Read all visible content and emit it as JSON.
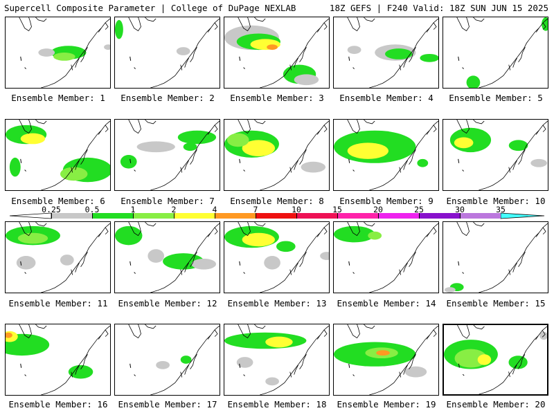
{
  "header": {
    "left": "Supercell Composite Parameter | College of DuPage NEXLAB",
    "right": "18Z GEFS | F240 Valid: 18Z SUN JUN 15 2025"
  },
  "colorbar": {
    "ticks": [
      "0.25",
      "0.5",
      "1",
      "2",
      "4",
      "7",
      "10",
      "15",
      "20",
      "25",
      "30",
      "35"
    ],
    "colors": [
      "#c8c8c8",
      "#22dd22",
      "#88ee44",
      "#ffff33",
      "#ff9922",
      "#ee1111",
      "#ee1155",
      "#ff22aa",
      "#ee22ee",
      "#8811cc",
      "#bb77dd",
      "#44ffff"
    ]
  },
  "panels": [
    {
      "label": "Ensemble Member: 1",
      "selected": false
    },
    {
      "label": "Ensemble Member: 2",
      "selected": false
    },
    {
      "label": "Ensemble Member: 3",
      "selected": false
    },
    {
      "label": "Ensemble Member: 4",
      "selected": false
    },
    {
      "label": "Ensemble Member: 5",
      "selected": false
    },
    {
      "label": "Ensemble Member: 6",
      "selected": false
    },
    {
      "label": "Ensemble Member: 7",
      "selected": false
    },
    {
      "label": "Ensemble Member: 8",
      "selected": false
    },
    {
      "label": "Ensemble Member: 9",
      "selected": false
    },
    {
      "label": "Ensemble Member: 10",
      "selected": false
    },
    {
      "label": "Ensemble Member: 11",
      "selected": false
    },
    {
      "label": "Ensemble Member: 12",
      "selected": false
    },
    {
      "label": "Ensemble Member: 13",
      "selected": false
    },
    {
      "label": "Ensemble Member: 14",
      "selected": false
    },
    {
      "label": "Ensemble Member: 15",
      "selected": false
    },
    {
      "label": "Ensemble Member: 16",
      "selected": false
    },
    {
      "label": "Ensemble Member: 17",
      "selected": false
    },
    {
      "label": "Ensemble Member: 18",
      "selected": false
    },
    {
      "label": "Ensemble Member: 19",
      "selected": false
    },
    {
      "label": "Ensemble Member: 20",
      "selected": true
    }
  ]
}
